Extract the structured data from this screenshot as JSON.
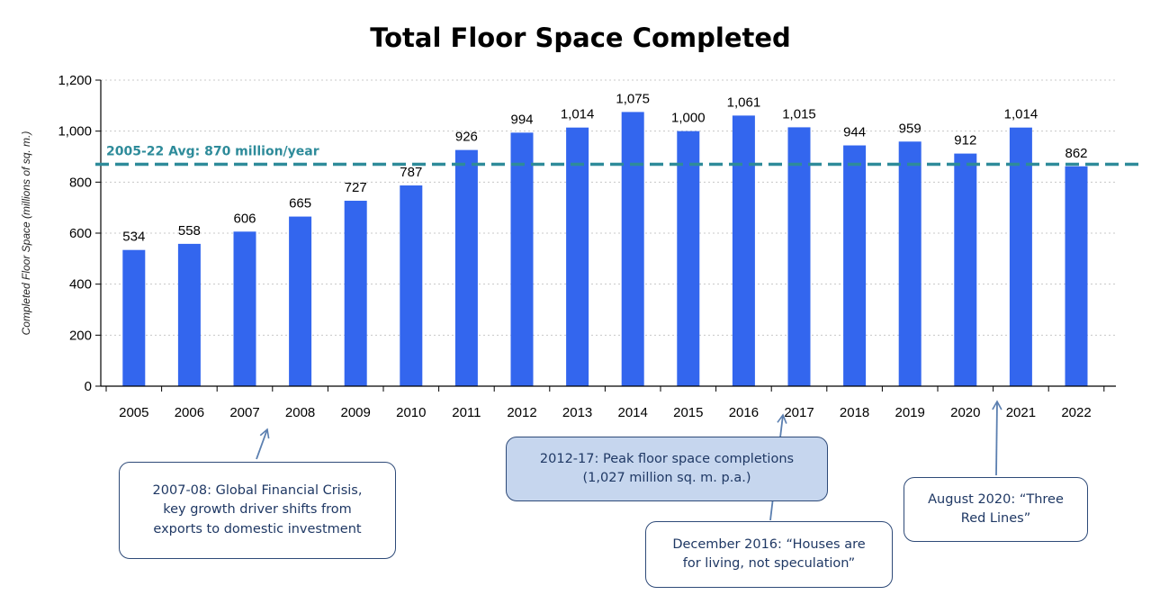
{
  "colors": {
    "bar": "#3366ee",
    "avg_line": "#2e8b9a",
    "arrow": "#5b7fb0",
    "callout_text": "#1f3864"
  },
  "chart_data": {
    "type": "bar",
    "title": "Total Floor Space Completed",
    "ylabel": "Completed Floor Space (millions of sq. m.)",
    "xlabel": "",
    "categories": [
      "2005",
      "2006",
      "2007",
      "2008",
      "2009",
      "2010",
      "2011",
      "2012",
      "2013",
      "2014",
      "2015",
      "2016",
      "2017",
      "2018",
      "2019",
      "2020",
      "2021",
      "2022"
    ],
    "values": [
      534,
      558,
      606,
      665,
      727,
      787,
      926,
      994,
      1014,
      1075,
      1000,
      1061,
      1015,
      944,
      959,
      912,
      1014,
      862
    ],
    "data_labels": [
      "534",
      "558",
      "606",
      "665",
      "727",
      "787",
      "926",
      "994",
      "1,014",
      "1,075",
      "1,000",
      "1,061",
      "1,015",
      "944",
      "959",
      "912",
      "1,014",
      "862"
    ],
    "ylim": [
      0,
      1200
    ],
    "yticks": [
      0,
      200,
      400,
      600,
      800,
      1000,
      1200
    ],
    "ytick_labels": [
      "0",
      "200",
      "400",
      "600",
      "800",
      "1,000",
      "1,200"
    ],
    "grid": true,
    "reference_line": {
      "value": 870,
      "label": "2005-22 Avg: 870 million/year",
      "style": "dashed"
    }
  },
  "annotations": [
    {
      "id": "gfc",
      "text_lines": [
        "2007-08: Global Financial Crisis,",
        "key growth driver shifts from",
        "exports to domestic investment"
      ],
      "shaded": false
    },
    {
      "id": "peak",
      "text_lines": [
        "2012-17: Peak floor space completions",
        "(1,027 million sq. m. p.a.)"
      ],
      "shaded": true
    },
    {
      "id": "dec2016",
      "text_lines": [
        "December 2016: “Houses are",
        "for living, not speculation”"
      ],
      "shaded": false
    },
    {
      "id": "aug2020",
      "text_lines": [
        "August 2020: “Three",
        "Red Lines”"
      ],
      "shaded": false
    }
  ]
}
